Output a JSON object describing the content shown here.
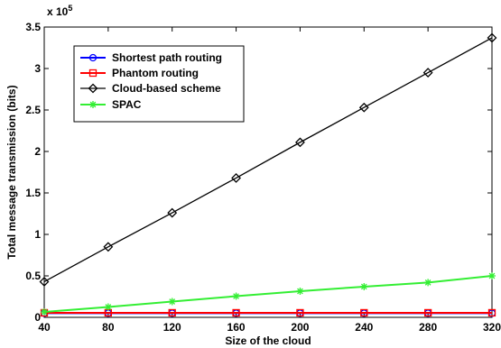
{
  "chart_data": {
    "type": "line",
    "xlabel": "Size of the cloud",
    "ylabel": "Total message transmission (bits)",
    "y_multiplier_label": "x 10",
    "y_multiplier_exponent": "5",
    "xlim": [
      40,
      320
    ],
    "ylim": [
      0,
      350000
    ],
    "x_ticks": [
      40,
      80,
      120,
      160,
      200,
      240,
      280,
      320
    ],
    "x_tick_labels": [
      "40",
      "80",
      "120",
      "160",
      "200",
      "240",
      "280",
      "320"
    ],
    "y_ticks": [
      0,
      50000,
      100000,
      150000,
      200000,
      250000,
      300000,
      350000
    ],
    "y_tick_labels": [
      "0",
      "0.5",
      "1",
      "1.5",
      "2",
      "2.5",
      "3",
      "3.5"
    ],
    "grid": false,
    "legend_position": "top-left",
    "x": [
      40,
      80,
      120,
      160,
      200,
      240,
      280,
      320
    ],
    "series": [
      {
        "name": "Shortest path routing",
        "color": "#0000ff",
        "marker": "circle",
        "values": [
          5000,
          5000,
          5000,
          5000,
          5000,
          5000,
          5000,
          5000
        ]
      },
      {
        "name": "Phantom routing",
        "color": "#ff0000",
        "marker": "square",
        "values": [
          5500,
          5500,
          5500,
          5500,
          5500,
          5500,
          5500,
          5500
        ]
      },
      {
        "name": "Cloud-based scheme",
        "color": "#000000",
        "marker": "diamond",
        "values": [
          43000,
          85000,
          126000,
          168000,
          211000,
          253000,
          295000,
          337000
        ]
      },
      {
        "name": "SPAC",
        "color": "#33ee33",
        "marker": "star",
        "values": [
          6500,
          12500,
          19000,
          25500,
          31500,
          37000,
          42000,
          50000
        ]
      }
    ]
  }
}
